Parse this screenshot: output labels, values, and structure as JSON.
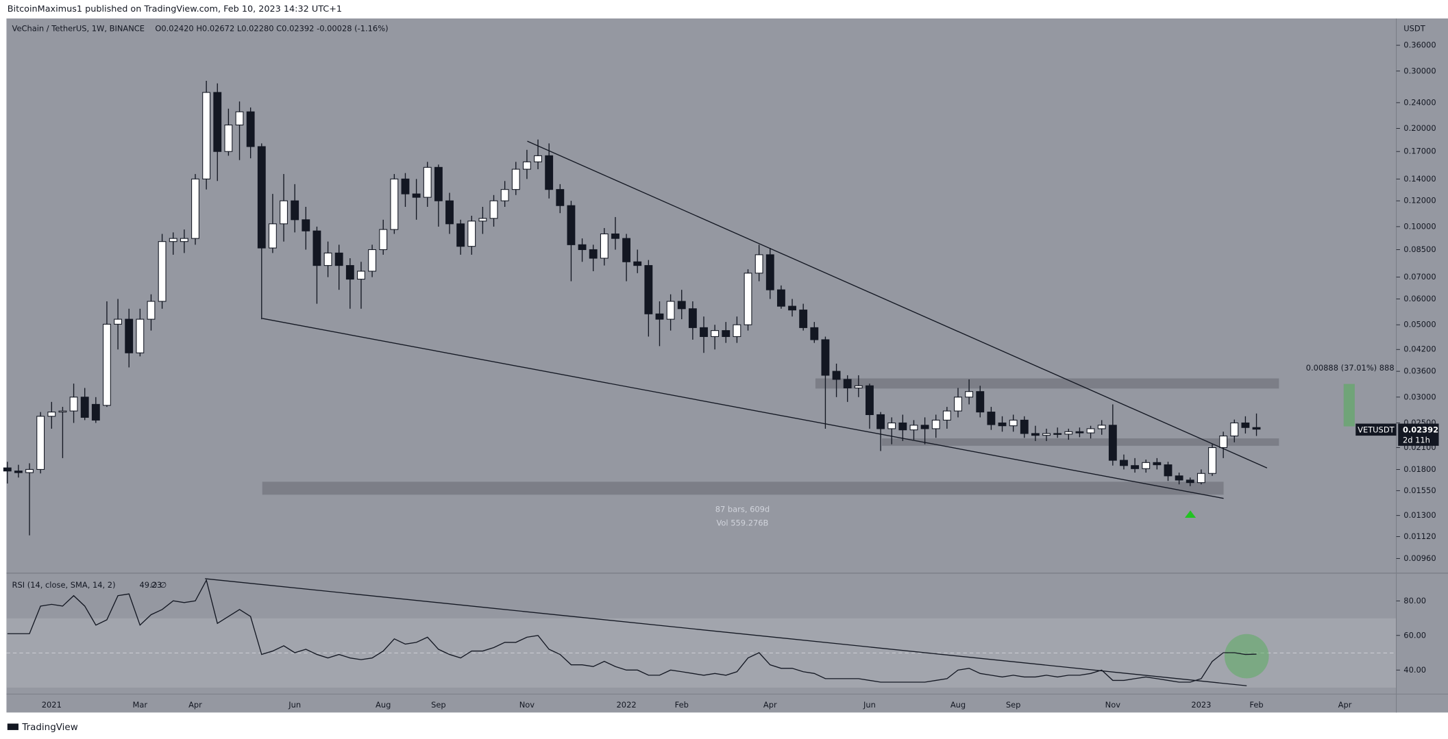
{
  "chart_data": [
    {
      "type": "candlestick",
      "publisher": "BitcoinMaximus1 published on TradingView.com, Feb 10, 2023 14:32 UTC+1",
      "title": "VeChain / TetherUS, 1W, BINANCE",
      "ohlc_header": "O0.02420 H0.02672 L0.02280 C0.02392 -0.00028 (-1.16%)",
      "currency": "USDT",
      "measure_range": "87 bars, 609d",
      "measure_volume": "Vol 559.276B",
      "measure_change": "0.00888 (37.01%) 888",
      "symbol_tag": "VETUSDT",
      "last_price_label": "0.02392",
      "countdown": "2d 11h",
      "footer": "TradingView",
      "log_scale": true,
      "grid": false,
      "up_color": "#ffffff",
      "down_color": "#131722",
      "categories": [
        null,
        null,
        null,
        null,
        "2021",
        null,
        null,
        null,
        null,
        null,
        null,
        null,
        "Mar",
        null,
        null,
        null,
        null,
        "Apr",
        null,
        null,
        null,
        null,
        null,
        null,
        null,
        null,
        "Jun",
        null,
        null,
        null,
        null,
        null,
        null,
        null,
        "Aug",
        null,
        null,
        null,
        null,
        "Sep",
        null,
        null,
        null,
        null,
        null,
        null,
        null,
        "Nov",
        null,
        null,
        null,
        null,
        null,
        null,
        null,
        null,
        "2022",
        null,
        null,
        null,
        null,
        "Feb",
        null,
        null,
        null,
        null,
        null,
        null,
        null,
        "Apr",
        null,
        null,
        null,
        null,
        null,
        null,
        null,
        null,
        "Jun",
        null,
        null,
        null,
        null,
        null,
        null,
        null,
        "Aug",
        null,
        null,
        null,
        null,
        "Sep",
        null,
        null,
        null,
        null,
        null,
        null,
        null,
        null,
        "Nov",
        null,
        null,
        null,
        null,
        null,
        null,
        null,
        "2023",
        null,
        null,
        null,
        null,
        "Feb",
        null,
        null,
        null,
        null,
        null,
        null,
        null,
        "Apr",
        null,
        null,
        null,
        null
      ],
      "open": [
        0.0182,
        0.0178,
        0.0176,
        0.018,
        0.0262,
        0.027,
        0.0272,
        0.03,
        0.0285,
        0.0283,
        0.0502,
        0.052,
        0.041,
        0.052,
        0.059,
        0.09,
        0.09,
        0.092,
        0.14,
        0.258,
        0.17,
        0.205,
        0.225,
        0.176,
        0.086,
        0.102,
        0.12,
        0.105,
        0.097,
        0.076,
        0.083,
        0.076,
        0.069,
        0.073,
        0.085,
        0.098,
        0.14,
        0.126,
        0.123,
        0.152,
        0.12,
        0.102,
        0.087,
        0.104,
        0.106,
        0.12,
        0.13,
        0.15,
        0.158,
        0.165,
        0.13,
        0.116,
        0.088,
        0.085,
        0.08,
        0.095,
        0.092,
        0.078,
        0.076,
        0.054,
        0.052,
        0.059,
        0.056,
        0.049,
        0.046,
        0.048,
        0.046,
        0.05,
        0.072,
        0.082,
        0.064,
        0.057,
        0.0555,
        0.049,
        0.045,
        0.036,
        0.034,
        0.032,
        0.0325,
        0.0265,
        0.024,
        0.025,
        0.0238,
        0.0246,
        0.024,
        0.0255,
        0.0272,
        0.03,
        0.0312,
        0.027,
        0.025,
        0.0245,
        0.0255,
        0.0232,
        0.0229,
        0.0232,
        0.0231,
        0.0235,
        0.0233,
        0.024,
        0.0246,
        0.0192,
        0.0185,
        0.0181,
        0.0189,
        0.0186,
        0.0172,
        0.0167,
        0.0164,
        0.0175,
        0.021,
        0.0228,
        0.025,
        0.0242,
        null,
        null,
        null,
        null,
        null,
        null,
        null,
        null,
        null,
        null,
        null,
        null
      ],
      "high": [
        0.019,
        0.0186,
        0.0188,
        0.027,
        0.029,
        0.028,
        0.033,
        0.032,
        0.03,
        0.059,
        0.06,
        0.056,
        0.056,
        0.062,
        0.095,
        0.096,
        0.098,
        0.145,
        0.28,
        0.275,
        0.23,
        0.242,
        0.232,
        0.18,
        0.126,
        0.145,
        0.135,
        0.115,
        0.1,
        0.09,
        0.088,
        0.08,
        0.078,
        0.088,
        0.105,
        0.145,
        0.146,
        0.14,
        0.158,
        0.155,
        0.127,
        0.105,
        0.108,
        0.115,
        0.125,
        0.138,
        0.158,
        0.172,
        0.185,
        0.18,
        0.135,
        0.12,
        0.092,
        0.088,
        0.099,
        0.107,
        0.095,
        0.085,
        0.079,
        0.059,
        0.062,
        0.064,
        0.059,
        0.053,
        0.05,
        0.051,
        0.053,
        0.074,
        0.088,
        0.086,
        0.066,
        0.06,
        0.058,
        0.051,
        0.046,
        0.038,
        0.035,
        0.035,
        0.033,
        0.027,
        0.026,
        0.0265,
        0.0255,
        0.026,
        0.0265,
        0.028,
        0.032,
        0.034,
        0.0325,
        0.028,
        0.0262,
        0.0265,
        0.0262,
        0.0245,
        0.024,
        0.0242,
        0.024,
        0.0242,
        0.0245,
        0.0255,
        0.0285,
        0.02,
        0.0195,
        0.0193,
        0.0195,
        0.019,
        0.0176,
        0.017,
        0.018,
        0.0215,
        0.0235,
        0.0256,
        0.0262,
        0.02672,
        null,
        null,
        null,
        null,
        null,
        null,
        null,
        null,
        null,
        null,
        null,
        null
      ],
      "low": [
        0.0163,
        0.017,
        0.0113,
        0.0175,
        0.024,
        0.0195,
        0.025,
        0.0255,
        0.025,
        0.028,
        0.042,
        0.037,
        0.04,
        0.048,
        0.056,
        0.082,
        0.083,
        0.088,
        0.13,
        0.138,
        0.165,
        0.16,
        0.162,
        0.052,
        0.083,
        0.09,
        0.096,
        0.085,
        0.058,
        0.07,
        0.064,
        0.056,
        0.056,
        0.07,
        0.082,
        0.095,
        0.115,
        0.105,
        0.115,
        0.1,
        0.095,
        0.082,
        0.082,
        0.095,
        0.1,
        0.115,
        0.125,
        0.14,
        0.15,
        0.122,
        0.11,
        0.068,
        0.078,
        0.073,
        0.076,
        0.085,
        0.068,
        0.072,
        0.046,
        0.043,
        0.048,
        0.052,
        0.045,
        0.041,
        0.042,
        0.044,
        0.044,
        0.048,
        0.068,
        0.06,
        0.056,
        0.053,
        0.048,
        0.044,
        0.024,
        0.03,
        0.029,
        0.03,
        0.024,
        0.0205,
        0.0215,
        0.022,
        0.0222,
        0.0215,
        0.0225,
        0.024,
        0.026,
        0.0285,
        0.026,
        0.0238,
        0.0235,
        0.0235,
        0.0225,
        0.022,
        0.022,
        0.0225,
        0.0222,
        0.0226,
        0.0224,
        0.023,
        0.0185,
        0.018,
        0.0176,
        0.0176,
        0.018,
        0.0166,
        0.0162,
        0.016,
        0.0162,
        0.0172,
        0.0195,
        0.0218,
        0.0232,
        0.0228,
        null,
        null,
        null,
        null,
        null,
        null,
        null,
        null,
        null,
        null,
        null,
        null
      ],
      "close": [
        0.0178,
        0.0176,
        0.018,
        0.0262,
        0.027,
        0.0272,
        0.03,
        0.026,
        0.0255,
        0.0502,
        0.052,
        0.041,
        0.052,
        0.059,
        0.09,
        0.092,
        0.092,
        0.14,
        0.258,
        0.17,
        0.205,
        0.225,
        0.176,
        0.086,
        0.102,
        0.12,
        0.105,
        0.097,
        0.076,
        0.083,
        0.076,
        0.069,
        0.073,
        0.085,
        0.098,
        0.14,
        0.126,
        0.123,
        0.152,
        0.12,
        0.102,
        0.087,
        0.104,
        0.106,
        0.12,
        0.13,
        0.15,
        0.158,
        0.165,
        0.13,
        0.116,
        0.088,
        0.085,
        0.08,
        0.095,
        0.092,
        0.078,
        0.076,
        0.054,
        0.052,
        0.059,
        0.056,
        0.049,
        0.046,
        0.048,
        0.046,
        0.05,
        0.072,
        0.082,
        0.064,
        0.057,
        0.0555,
        0.049,
        0.045,
        0.035,
        0.034,
        0.032,
        0.0325,
        0.0265,
        0.024,
        0.025,
        0.0238,
        0.0246,
        0.024,
        0.0255,
        0.0272,
        0.03,
        0.0312,
        0.027,
        0.0247,
        0.0245,
        0.0255,
        0.0232,
        0.0229,
        0.0232,
        0.0231,
        0.0235,
        0.0233,
        0.024,
        0.0246,
        0.0192,
        0.0185,
        0.0181,
        0.0189,
        0.0186,
        0.0172,
        0.0167,
        0.0164,
        0.0175,
        0.021,
        0.0228,
        0.025,
        0.0242,
        0.02392,
        null,
        null,
        null,
        null,
        null,
        null,
        null,
        null,
        null,
        null,
        null,
        null
      ],
      "ylim": [
        0.00871,
        0.435
      ],
      "yticks": [
        {
          "value": 0.36,
          "label": "0.36000"
        },
        {
          "value": 0.3,
          "label": "0.30000"
        },
        {
          "value": 0.24,
          "label": "0.24000"
        },
        {
          "value": 0.2,
          "label": "0.20000"
        },
        {
          "value": 0.17,
          "label": "0.17000"
        },
        {
          "value": 0.14,
          "label": "0.14000"
        },
        {
          "value": 0.12,
          "label": "0.12000"
        },
        {
          "value": 0.1,
          "label": "0.10000"
        },
        {
          "value": 0.085,
          "label": "0.08500"
        },
        {
          "value": 0.07,
          "label": "0.07000"
        },
        {
          "value": 0.06,
          "label": "0.06000"
        },
        {
          "value": 0.05,
          "label": "0.05000"
        },
        {
          "value": 0.042,
          "label": "0.04200"
        },
        {
          "value": 0.036,
          "label": "0.03600"
        },
        {
          "value": 0.03,
          "label": "0.03000"
        },
        {
          "value": 0.025,
          "label": "0.02500"
        },
        {
          "value": 0.021,
          "label": "0.02100"
        },
        {
          "value": 0.018,
          "label": "0.01800"
        },
        {
          "value": 0.0155,
          "label": "0.01550"
        },
        {
          "value": 0.013,
          "label": "0.01300"
        },
        {
          "value": 0.0112,
          "label": "0.01120"
        },
        {
          "value": 0.0096,
          "label": "0.00960"
        }
      ]
    },
    {
      "type": "line",
      "title": "RSI (14, close, SMA, 14, 2)",
      "extra": "∅ ∅",
      "color": "#131722",
      "values": [
        61,
        61,
        61,
        77,
        78,
        77,
        83,
        77,
        66,
        69,
        83,
        84,
        66,
        72,
        75,
        80,
        79,
        80,
        92,
        67,
        71,
        75,
        71,
        49,
        51,
        54,
        50,
        52,
        49,
        47,
        49,
        47,
        46,
        47,
        51,
        58,
        55,
        56,
        59,
        52,
        49,
        47,
        51,
        51,
        53,
        56,
        56,
        59,
        60,
        52,
        49,
        43,
        43,
        42,
        45,
        42,
        40,
        40,
        37,
        37,
        40,
        39,
        38,
        37,
        38,
        37,
        39,
        47,
        50,
        43,
        41,
        41,
        39,
        38,
        35,
        35,
        35,
        35,
        34,
        33,
        33,
        33,
        33,
        33,
        34,
        35,
        40,
        41,
        38,
        37,
        36,
        37,
        36,
        36,
        37,
        36,
        37,
        37,
        38,
        40,
        34,
        34,
        35,
        36,
        35,
        34,
        33,
        33,
        35,
        45,
        50,
        50,
        49,
        49.23,
        null,
        null,
        null,
        null,
        null,
        null,
        null,
        null,
        null,
        null,
        null,
        null
      ],
      "ylim": [
        26.1,
        95.5
      ],
      "yticks": [
        {
          "value": 80,
          "label": "80.00"
        },
        {
          "value": 60,
          "label": "60.00"
        },
        {
          "value": 40,
          "label": "40.00"
        }
      ]
    }
  ]
}
